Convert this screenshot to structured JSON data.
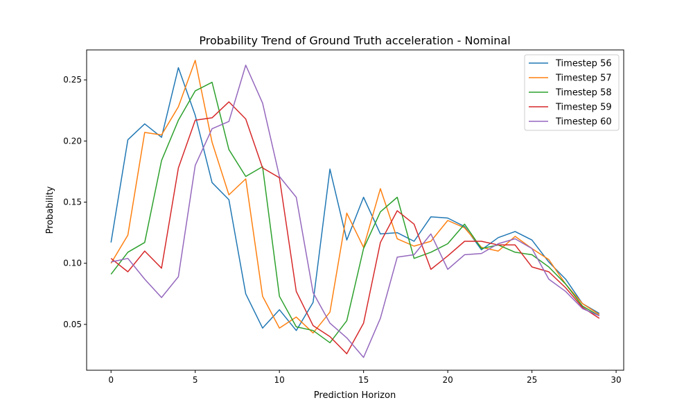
{
  "chart_data": {
    "type": "line",
    "title": "Probability Trend of Ground Truth acceleration - Nominal",
    "xlabel": "Prediction Horizon",
    "ylabel": "Probability",
    "xlim": [
      -1.45,
      30.45
    ],
    "ylim": [
      0.0125,
      0.2745
    ],
    "xticks": [
      0,
      5,
      10,
      15,
      20,
      25,
      30
    ],
    "yticks": [
      0.05,
      0.1,
      0.15,
      0.2,
      0.25
    ],
    "ytick_labels": [
      "0.05",
      "0.10",
      "0.15",
      "0.20",
      "0.25"
    ],
    "grid": false,
    "legend_position": "top-right",
    "x": [
      0,
      1,
      2,
      3,
      4,
      5,
      6,
      7,
      8,
      9,
      10,
      11,
      12,
      13,
      14,
      15,
      16,
      17,
      18,
      19,
      20,
      21,
      22,
      23,
      24,
      25,
      26,
      27,
      28,
      29
    ],
    "series": [
      {
        "name": "Timestep 56",
        "color": "#1f77b4",
        "values": [
          0.117,
          0.201,
          0.214,
          0.203,
          0.26,
          0.221,
          0.166,
          0.152,
          0.075,
          0.047,
          0.062,
          0.045,
          0.068,
          0.177,
          0.119,
          0.154,
          0.124,
          0.125,
          0.118,
          0.138,
          0.137,
          0.13,
          0.111,
          0.121,
          0.126,
          0.119,
          0.101,
          0.087,
          0.067,
          0.059
        ]
      },
      {
        "name": "Timestep 57",
        "color": "#ff7f0e",
        "values": [
          0.1,
          0.123,
          0.207,
          0.205,
          0.228,
          0.266,
          0.199,
          0.156,
          0.169,
          0.073,
          0.047,
          0.056,
          0.043,
          0.06,
          0.141,
          0.113,
          0.161,
          0.12,
          0.114,
          0.118,
          0.135,
          0.129,
          0.113,
          0.11,
          0.122,
          0.112,
          0.103,
          0.083,
          0.067,
          0.058
        ]
      },
      {
        "name": "Timestep 58",
        "color": "#2ca02c",
        "values": [
          0.091,
          0.109,
          0.117,
          0.184,
          0.217,
          0.241,
          0.248,
          0.193,
          0.171,
          0.179,
          0.073,
          0.048,
          0.045,
          0.035,
          0.053,
          0.112,
          0.142,
          0.154,
          0.104,
          0.109,
          0.116,
          0.132,
          0.112,
          0.115,
          0.109,
          0.107,
          0.097,
          0.083,
          0.065,
          0.057
        ]
      },
      {
        "name": "Timestep 59",
        "color": "#d62728",
        "values": [
          0.104,
          0.093,
          0.11,
          0.096,
          0.178,
          0.217,
          0.219,
          0.232,
          0.218,
          0.178,
          0.17,
          0.077,
          0.049,
          0.04,
          0.026,
          0.051,
          0.117,
          0.143,
          0.132,
          0.095,
          0.106,
          0.118,
          0.118,
          0.115,
          0.115,
          0.097,
          0.093,
          0.08,
          0.064,
          0.055
        ]
      },
      {
        "name": "Timestep 60",
        "color": "#9467bd",
        "values": [
          0.101,
          0.104,
          0.087,
          0.072,
          0.089,
          0.18,
          0.21,
          0.216,
          0.262,
          0.231,
          0.171,
          0.154,
          0.076,
          0.051,
          0.039,
          0.023,
          0.055,
          0.105,
          0.107,
          0.124,
          0.095,
          0.107,
          0.108,
          0.116,
          0.12,
          0.112,
          0.087,
          0.077,
          0.063,
          0.057
        ]
      }
    ]
  }
}
